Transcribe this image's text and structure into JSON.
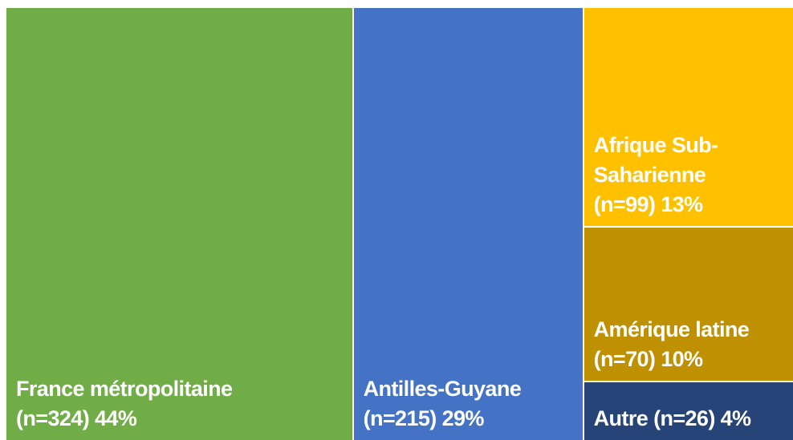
{
  "chart_data": {
    "type": "treemap",
    "categories": [
      "France métropolitaine",
      "Antilles-Guyane",
      "Afrique Sub-Saharienne",
      "Amérique latine",
      "Autre"
    ],
    "values": [
      324,
      215,
      99,
      70,
      26
    ],
    "value_labels": [
      "(n=324) 44%",
      "(n=215) 29%",
      "(n=99) 13%",
      "(n=70) 10%",
      "(n=26) 4%"
    ],
    "colors": [
      "#70ad47",
      "#4472c4",
      "#ffc000",
      "#bf9000",
      "#264478"
    ]
  }
}
